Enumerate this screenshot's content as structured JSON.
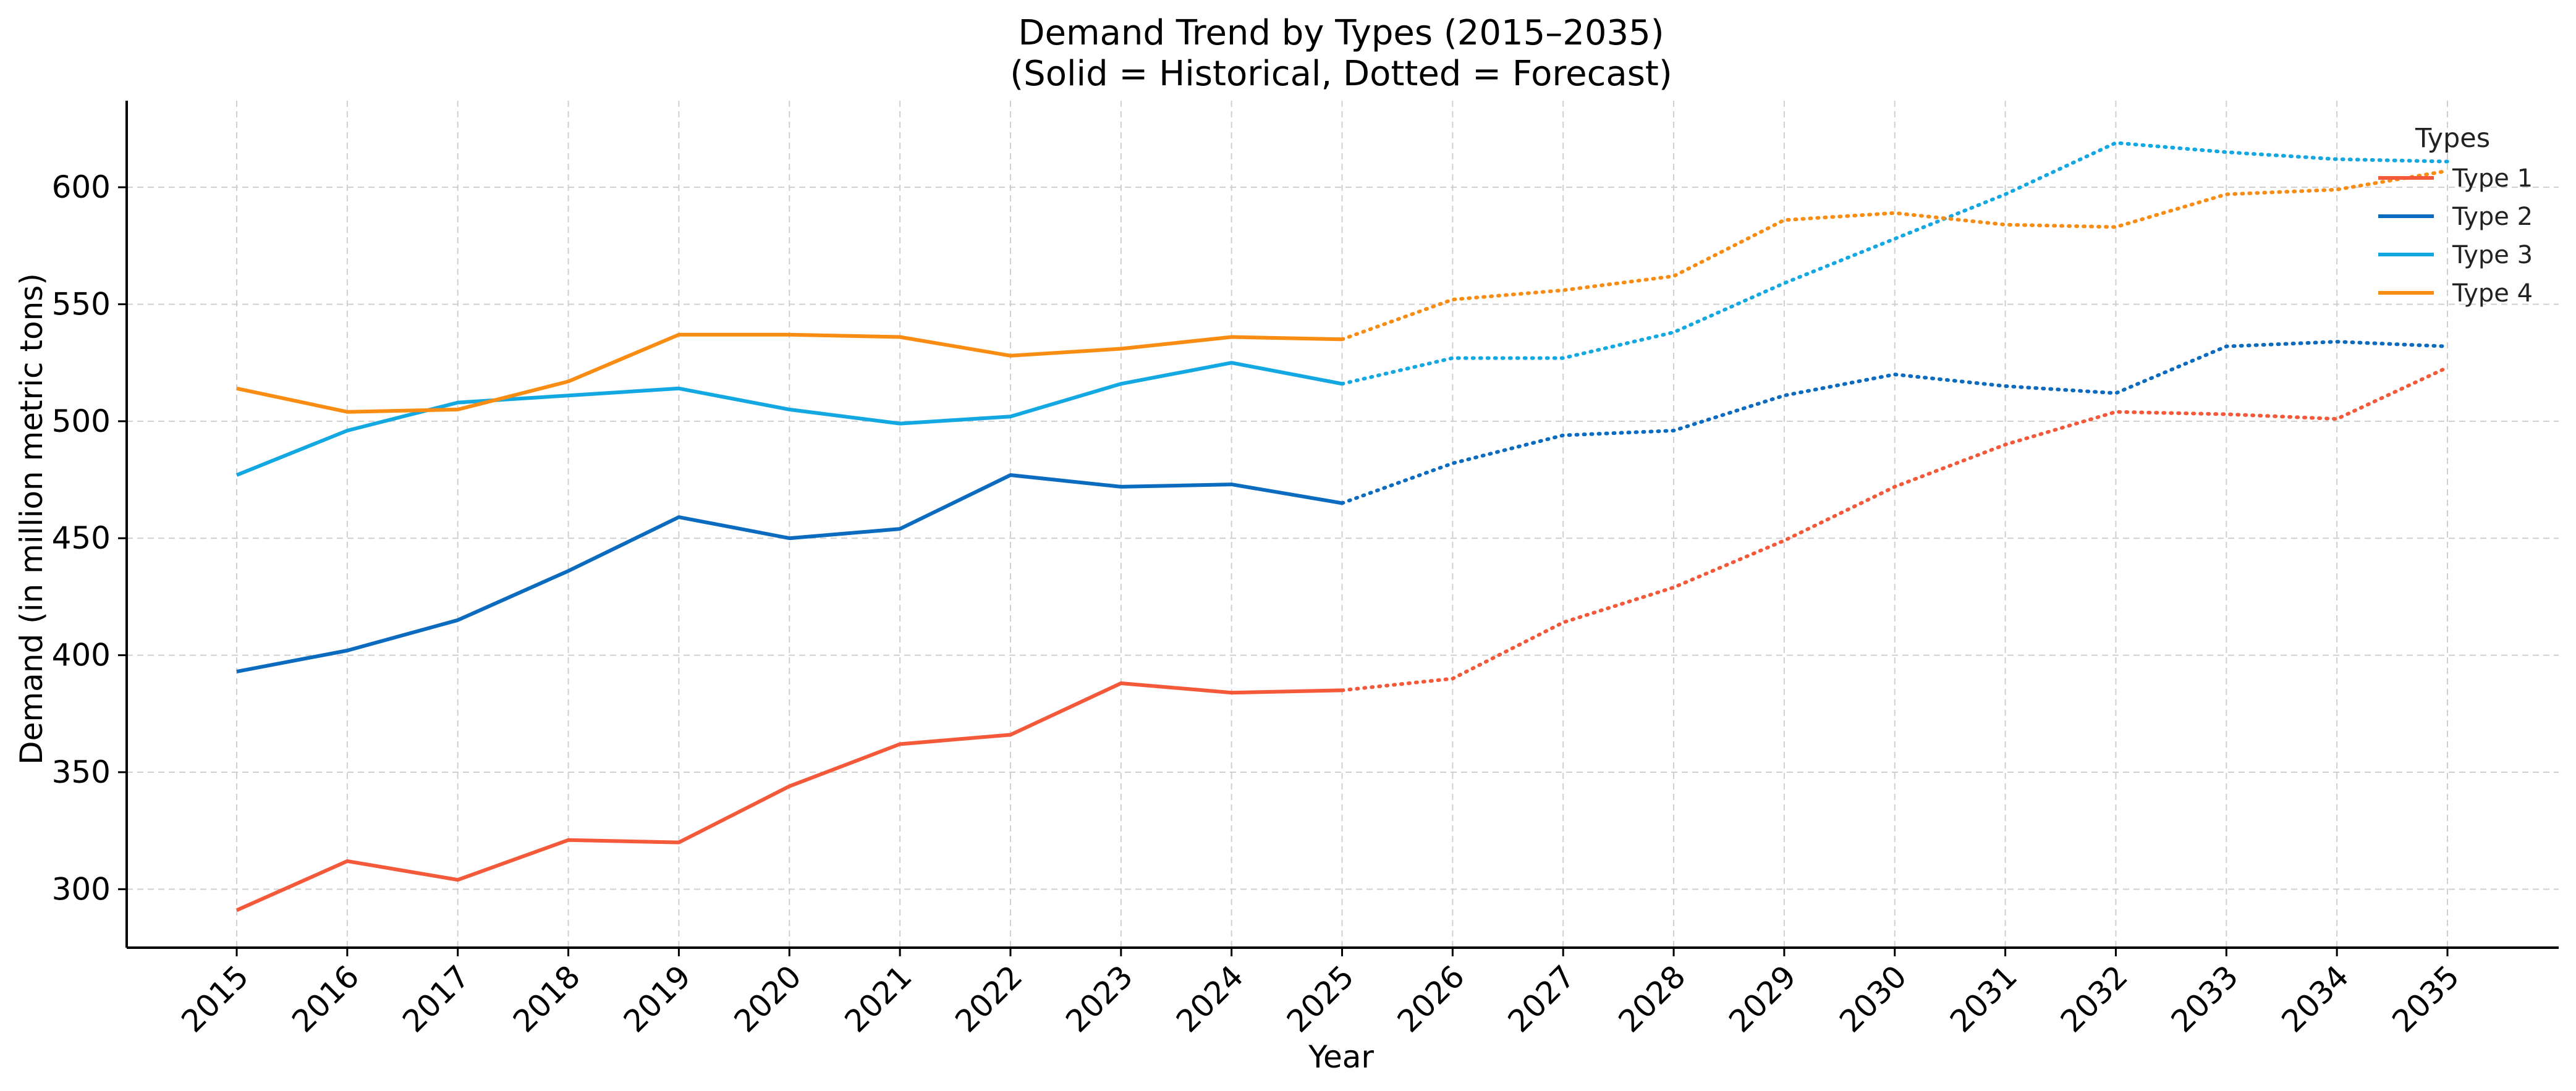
{
  "chart_data": {
    "type": "line",
    "title": "Demand Trend by Types (2015–2035)",
    "subtitle": "(Solid = Historical, Dotted = Forecast)",
    "xlabel": "Year",
    "ylabel": "Demand (in million metric tons)",
    "x": [
      "2015",
      "2016",
      "2017",
      "2018",
      "2019",
      "2020",
      "2021",
      "2022",
      "2023",
      "2024",
      "2025",
      "2026",
      "2027",
      "2028",
      "2029",
      "2030",
      "2031",
      "2032",
      "2033",
      "2034",
      "2035"
    ],
    "ylim": [
      275,
      637
    ],
    "yticks": [
      300,
      350,
      400,
      450,
      500,
      550,
      600
    ],
    "grid": true,
    "legend": {
      "title": "Types",
      "placement": "top-right"
    },
    "historical_end": "2025",
    "series": [
      {
        "name": "Type 1",
        "color": "#f4593a",
        "values": [
          291,
          312,
          304,
          321,
          320,
          344,
          362,
          366,
          388,
          384,
          385,
          390,
          414,
          429,
          449,
          472,
          490,
          504,
          503,
          501,
          523
        ]
      },
      {
        "name": "Type 2",
        "color": "#0b6bbf",
        "values": [
          393,
          402,
          415,
          436,
          459,
          450,
          454,
          477,
          472,
          473,
          465,
          482,
          494,
          496,
          511,
          520,
          515,
          512,
          532,
          534,
          532
        ]
      },
      {
        "name": "Type 3",
        "color": "#13a8e2",
        "values": [
          477,
          496,
          508,
          511,
          514,
          505,
          499,
          502,
          516,
          525,
          516,
          527,
          527,
          538,
          559,
          578,
          597,
          619,
          615,
          612,
          611
        ]
      },
      {
        "name": "Type 4",
        "color": "#f98d14",
        "values": [
          514,
          504,
          505,
          517,
          537,
          537,
          536,
          528,
          531,
          536,
          535,
          552,
          556,
          562,
          586,
          589,
          584,
          583,
          597,
          599,
          607
        ]
      }
    ]
  }
}
